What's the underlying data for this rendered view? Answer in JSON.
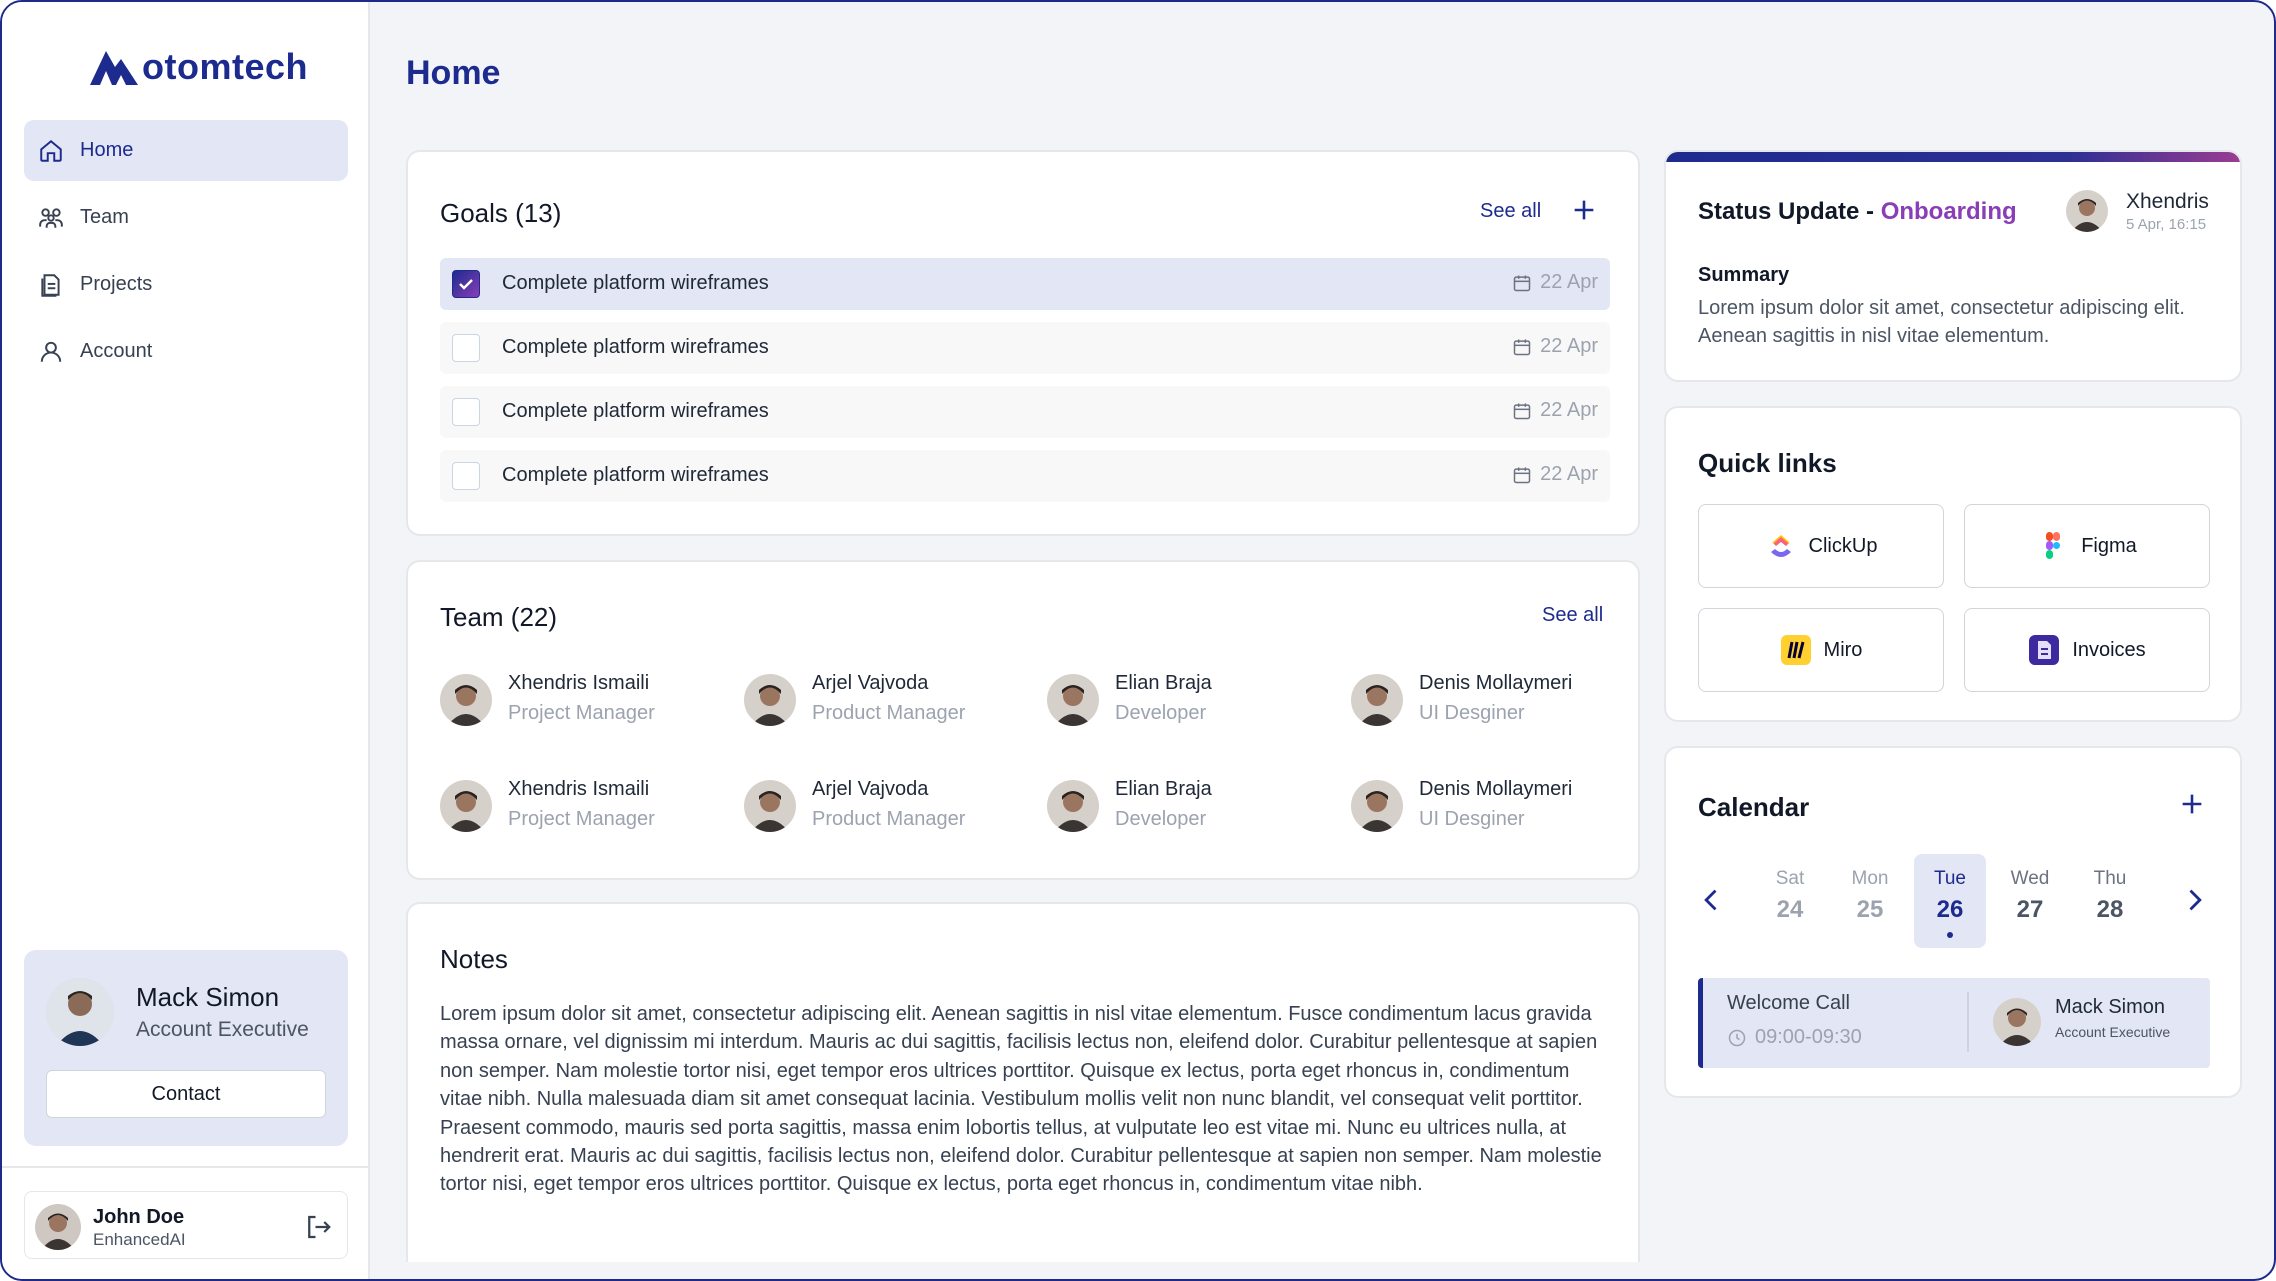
{
  "brand": {
    "name": "otomtech"
  },
  "nav": {
    "items": [
      {
        "label": "Home",
        "icon": "home-icon"
      },
      {
        "label": "Team",
        "icon": "users-icon"
      },
      {
        "label": "Projects",
        "icon": "document-icon"
      },
      {
        "label": "Account",
        "icon": "user-icon"
      }
    ]
  },
  "profile": {
    "name": "Mack Simon",
    "role": "Account Executive",
    "contact_label": "Contact"
  },
  "current_user": {
    "name": "John Doe",
    "company": "EnhancedAI"
  },
  "page": {
    "title": "Home"
  },
  "goals": {
    "title": "Goals (13)",
    "see_all": "See all",
    "items": [
      {
        "label": "Complete platform wireframes",
        "date": "22 Apr",
        "checked": true
      },
      {
        "label": "Complete platform wireframes",
        "date": "22 Apr",
        "checked": false
      },
      {
        "label": "Complete platform wireframes",
        "date": "22 Apr",
        "checked": false
      },
      {
        "label": "Complete platform wireframes",
        "date": "22 Apr",
        "checked": false
      }
    ]
  },
  "team": {
    "title": "Team (22)",
    "see_all": "See all",
    "members": [
      {
        "name": "Xhendris Ismaili",
        "role": "Project Manager"
      },
      {
        "name": "Arjel Vajvoda",
        "role": "Product Manager"
      },
      {
        "name": "Elian Braja",
        "role": "Developer"
      },
      {
        "name": "Denis Mollaymeri",
        "role": "UI Desginer"
      },
      {
        "name": "Xhendris Ismaili",
        "role": "Project Manager"
      },
      {
        "name": "Arjel Vajvoda",
        "role": "Product Manager"
      },
      {
        "name": "Elian Braja",
        "role": "Developer"
      },
      {
        "name": "Denis Mollaymeri",
        "role": "UI Desginer"
      }
    ]
  },
  "notes": {
    "title": "Notes",
    "text": "Lorem ipsum dolor sit amet, consectetur adipiscing elit. Aenean sagittis in nisl vitae elementum. Fusce condimentum lacus gravida massa ornare, vel dignissim mi interdum. Mauris ac dui sagittis, facilisis lectus non, eleifend dolor. Curabitur pellentesque at sapien non semper. Nam molestie tortor nisi, eget tempor eros ultrices porttitor. Quisque ex lectus, porta eget rhoncus in, condimentum vitae nibh. Nulla malesuada diam sit amet consequat lacinia. Vestibulum mollis velit non nunc blandit, vel consequat velit porttitor. Praesent commodo, mauris sed porta sagittis, massa enim lobortis tellus, at vulputate leo est vitae mi. Nunc eu ultrices nulla, at hendrerit erat. Mauris ac dui sagittis, facilisis lectus non, eleifend dolor. Curabitur pellentesque at sapien non semper. Nam molestie tortor nisi, eget tempor eros ultrices porttitor. Quisque ex lectus, porta eget rhoncus in, condimentum vitae nibh."
  },
  "status": {
    "title_prefix": "Status Update - ",
    "title_accent": "Onboarding",
    "user": "Xhendris",
    "date": "5 Apr, 16:15",
    "summary_label": "Summary",
    "summary": "Lorem ipsum dolor sit amet, consectetur adipiscing elit. Aenean sagittis in nisl vitae elementum."
  },
  "quick_links": {
    "title": "Quick links",
    "items": [
      {
        "label": "ClickUp",
        "icon": "clickup-icon"
      },
      {
        "label": "Figma",
        "icon": "figma-icon"
      },
      {
        "label": "Miro",
        "icon": "miro-icon"
      },
      {
        "label": "Invoices",
        "icon": "invoices-icon"
      }
    ]
  },
  "calendar": {
    "title": "Calendar",
    "days": [
      {
        "name": "Sat",
        "num": "24"
      },
      {
        "name": "Mon",
        "num": "25"
      },
      {
        "name": "Tue",
        "num": "26"
      },
      {
        "name": "Wed",
        "num": "27"
      },
      {
        "name": "Thu",
        "num": "28"
      }
    ],
    "selected_index": 2,
    "event": {
      "title": "Welcome Call",
      "time": "09:00-09:30",
      "person": "Mack Simon",
      "role": "Account Executive"
    }
  },
  "colors": {
    "primary": "#1d2b8f",
    "accent": "#8a3db8",
    "selection": "#e3e6f4"
  }
}
